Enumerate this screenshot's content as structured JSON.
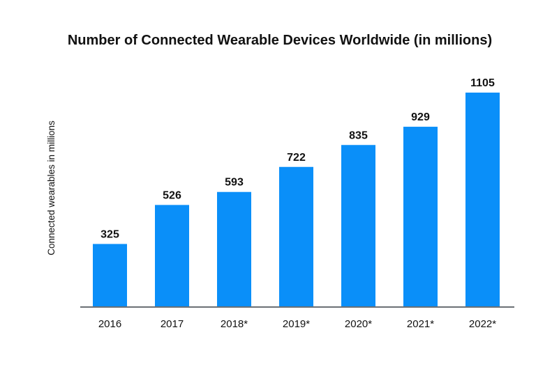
{
  "chart_data": {
    "type": "bar",
    "title": "Number of Connected Wearable Devices Worldwide (in millions)",
    "xlabel": "",
    "ylabel": "Connected wearables in millions",
    "categories": [
      "2016",
      "2017",
      "2018*",
      "2019*",
      "2020*",
      "2021*",
      "2022*"
    ],
    "values": [
      325,
      526,
      593,
      722,
      835,
      929,
      1105
    ],
    "ylim": [
      0,
      1105
    ],
    "grid": false,
    "data_labels": true,
    "colors": {
      "bar": "#0a8ff9",
      "axis": "#6b7075",
      "text": "#111111"
    }
  }
}
